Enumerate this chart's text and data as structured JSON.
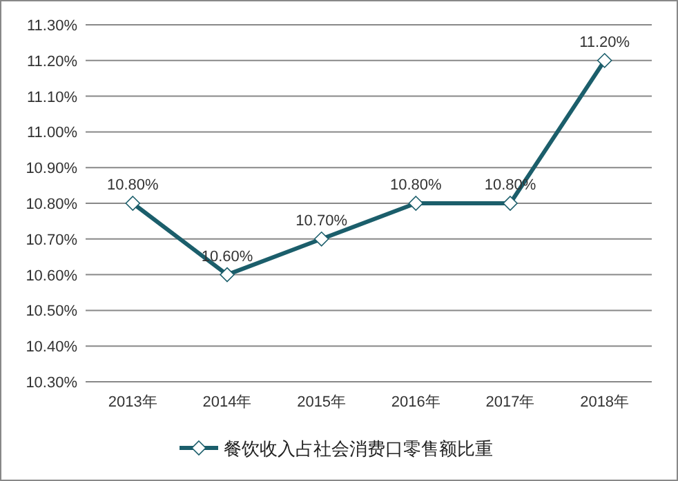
{
  "chart_data": {
    "type": "line",
    "categories": [
      "2013年",
      "2014年",
      "2015年",
      "2016年",
      "2017年",
      "2018年"
    ],
    "series": [
      {
        "name": "餐饮收入占社会消费口零售额比重",
        "color": "#1b5e6b",
        "values": [
          10.8,
          10.6,
          10.7,
          10.8,
          10.8,
          11.2
        ],
        "value_labels": [
          "10.80%",
          "10.60%",
          "10.70%",
          "10.80%",
          "10.80%",
          "11.20%"
        ]
      }
    ],
    "ylim": [
      10.3,
      11.3
    ],
    "yticks": [
      {
        "value": 10.3,
        "label": "10.30%"
      },
      {
        "value": 10.4,
        "label": "10.40%"
      },
      {
        "value": 10.5,
        "label": "10.50%"
      },
      {
        "value": 10.6,
        "label": "10.60%"
      },
      {
        "value": 10.7,
        "label": "10.70%"
      },
      {
        "value": 10.8,
        "label": "10.80%"
      },
      {
        "value": 10.9,
        "label": "10.90%"
      },
      {
        "value": 11.0,
        "label": "11.00%"
      },
      {
        "value": 11.1,
        "label": "11.10%"
      },
      {
        "value": 11.2,
        "label": "11.20%"
      },
      {
        "value": 11.3,
        "label": "11.30%"
      }
    ],
    "grid": "y",
    "legend": "bottom",
    "marker": "diamond",
    "line_style": "solid"
  }
}
